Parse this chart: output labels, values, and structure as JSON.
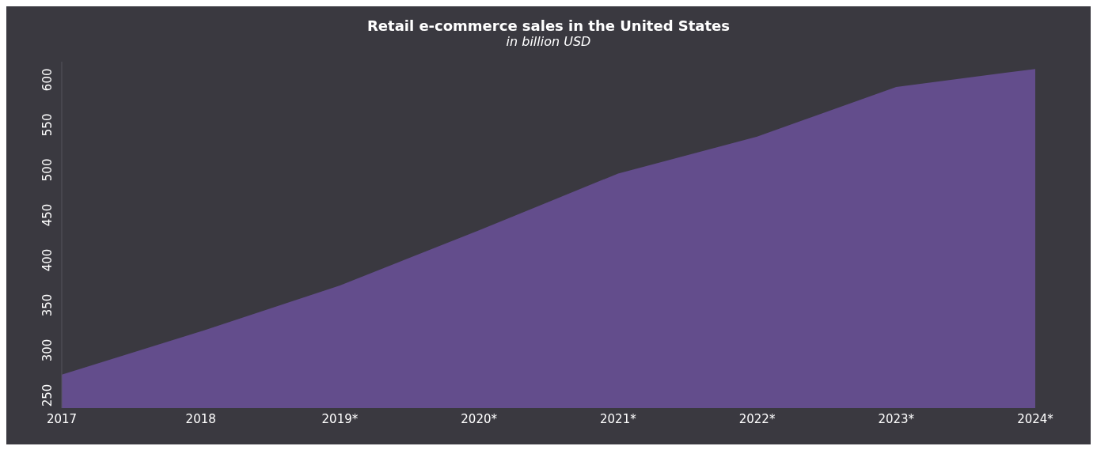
{
  "chart_data": {
    "type": "area",
    "title": "Retail e-commerce sales in the United States",
    "subtitle": "in billion USD",
    "categories": [
      "2017",
      "2018",
      "2019*",
      "2020*",
      "2021*",
      "2022*",
      "2023*",
      "2024*"
    ],
    "values": [
      273,
      321,
      372,
      433,
      496,
      537,
      592,
      612
    ],
    "color": "#634d8c",
    "ylim": [
      236,
      620
    ],
    "yticks": [
      250,
      300,
      350,
      400,
      450,
      500,
      550,
      600
    ],
    "grid": false,
    "legend": false
  }
}
